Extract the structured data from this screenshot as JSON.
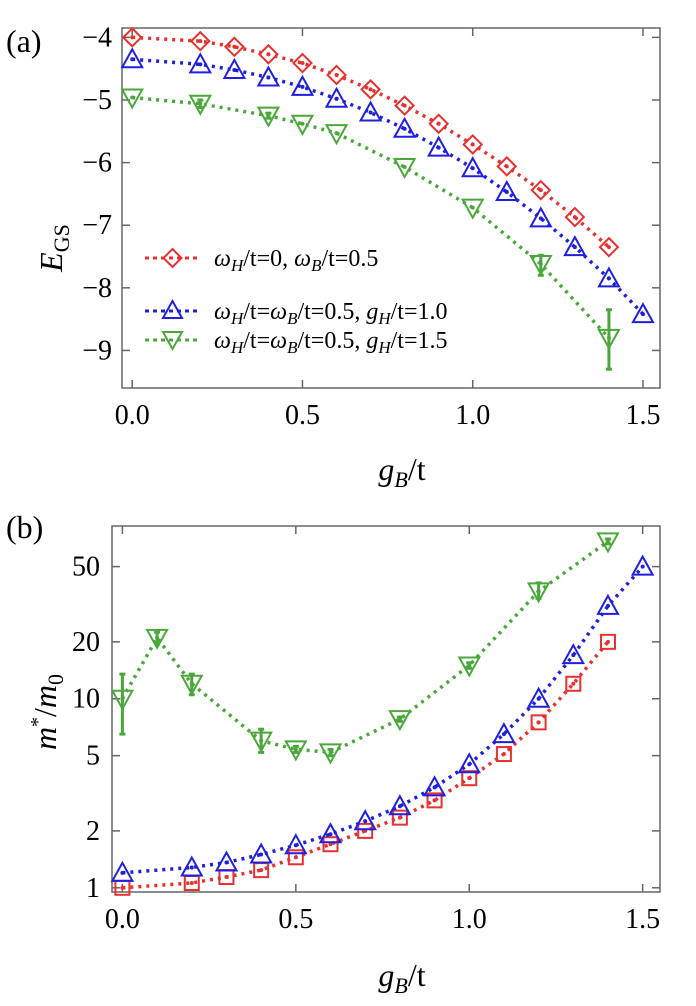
{
  "chart_data": [
    {
      "type": "line",
      "panel_label": "(a)",
      "xlabel": "g_B/t",
      "ylabel": "E_GS",
      "xlim": [
        -0.03,
        1.55
      ],
      "ylim": [
        -9.6,
        -3.85
      ],
      "xticks": [
        0.0,
        0.5,
        1.0,
        1.5
      ],
      "xtick_labels": [
        "0.0",
        "0.5",
        "1.0",
        "1.5"
      ],
      "yticks": [
        -4,
        -5,
        -6,
        -7,
        -8,
        -9
      ],
      "ytick_labels": [
        "−4",
        "−5",
        "−6",
        "−7",
        "−8",
        "−9"
      ],
      "legend_position": "bottom-left",
      "series": [
        {
          "name": "ωH/t=0, ωB/t=0.5",
          "color": "#e8312f",
          "marker": "diamond",
          "x": [
            0.0,
            0.2,
            0.3,
            0.4,
            0.5,
            0.6,
            0.7,
            0.8,
            0.9,
            1.0,
            1.1,
            1.2,
            1.3,
            1.4
          ],
          "y": [
            -4.0,
            -4.06,
            -4.15,
            -4.27,
            -4.41,
            -4.6,
            -4.83,
            -5.09,
            -5.38,
            -5.71,
            -6.06,
            -6.44,
            -6.87,
            -7.35
          ]
        },
        {
          "name": "ωH/t=ωB/t=0.5, gH/t=1.0",
          "color": "#1f1fe0",
          "marker": "triangle-up",
          "x": [
            0.0,
            0.2,
            0.3,
            0.4,
            0.5,
            0.6,
            0.7,
            0.8,
            0.9,
            1.0,
            1.1,
            1.2,
            1.3,
            1.4,
            1.5
          ],
          "y": [
            -4.35,
            -4.43,
            -4.52,
            -4.64,
            -4.79,
            -4.98,
            -5.2,
            -5.46,
            -5.76,
            -6.09,
            -6.47,
            -6.89,
            -7.35,
            -7.85,
            -8.42
          ]
        },
        {
          "name": "ωH/t=ωB/t=0.5, gH/t=1.5",
          "color": "#4aa83a",
          "marker": "triangle-down",
          "x": [
            0.0,
            0.2,
            0.4,
            0.5,
            0.6,
            0.8,
            1.0,
            1.2,
            1.4
          ],
          "y": [
            -4.96,
            -5.06,
            -5.25,
            -5.38,
            -5.53,
            -6.07,
            -6.72,
            -7.62,
            -8.8
          ],
          "error_low": [
            -4.96,
            -5.12,
            -5.29,
            -5.38,
            -5.53,
            -6.07,
            -6.72,
            -7.8,
            -9.3
          ],
          "error_high": [
            -4.96,
            -5.0,
            -5.21,
            -5.38,
            -5.53,
            -6.07,
            -6.72,
            -7.48,
            -8.35
          ]
        }
      ]
    },
    {
      "type": "line",
      "panel_label": "(b)",
      "xlabel": "g_B/t",
      "ylabel": "m*/m0",
      "yscale": "log",
      "xlim": [
        -0.03,
        1.55
      ],
      "ylim": [
        0.95,
        82
      ],
      "xticks": [
        0.0,
        0.5,
        1.0,
        1.5
      ],
      "xtick_labels": [
        "0.0",
        "0.5",
        "1.0",
        "1.5"
      ],
      "yticks": [
        1,
        2,
        5,
        10,
        20,
        50
      ],
      "ytick_labels": [
        "1",
        "2",
        "5",
        "10",
        "20",
        "50"
      ],
      "series": [
        {
          "name": "ωH/t=0, ωB/t=0.5",
          "color": "#e8312f",
          "marker": "square",
          "x": [
            0.0,
            0.2,
            0.3,
            0.4,
            0.5,
            0.6,
            0.7,
            0.8,
            0.9,
            1.0,
            1.1,
            1.2,
            1.3,
            1.4
          ],
          "y": [
            1.0,
            1.06,
            1.14,
            1.24,
            1.45,
            1.7,
            2.0,
            2.35,
            2.9,
            3.8,
            5.1,
            7.5,
            12.0,
            20.0
          ]
        },
        {
          "name": "ωH/t=ωB/t=0.5, gH/t=1.0",
          "color": "#1f1fe0",
          "marker": "triangle-up",
          "x": [
            0.0,
            0.2,
            0.3,
            0.4,
            0.5,
            0.6,
            0.7,
            0.8,
            0.9,
            1.0,
            1.1,
            1.2,
            1.3,
            1.4,
            1.5
          ],
          "y": [
            1.2,
            1.28,
            1.36,
            1.5,
            1.68,
            1.92,
            2.25,
            2.7,
            3.4,
            4.5,
            6.5,
            10.0,
            17.0,
            31.0,
            50.0
          ]
        },
        {
          "name": "ωH/t=ωB/t=0.5, gH/t=1.5",
          "color": "#4aa83a",
          "marker": "triangle-down",
          "x": [
            0.0,
            0.1,
            0.2,
            0.4,
            0.5,
            0.6,
            0.8,
            1.0,
            1.2,
            1.4
          ],
          "y": [
            10.0,
            21.0,
            12.0,
            6.0,
            5.4,
            5.2,
            7.8,
            15.0,
            37.0,
            68.0
          ],
          "error_low": [
            6.5,
            19.5,
            10.5,
            5.2,
            5.2,
            5.0,
            7.6,
            14.5,
            34.0,
            66.0
          ],
          "error_high": [
            13.5,
            22.5,
            13.5,
            6.9,
            5.6,
            5.4,
            8.0,
            15.5,
            41.0,
            70.0
          ]
        }
      ]
    }
  ],
  "legend": {
    "entries": [
      {
        "symbol": "ω",
        "sub1": "H",
        "mid1": "/t=0, ",
        "sym2": "ω",
        "sub2": "B",
        "end": "/t=0.5"
      },
      {
        "symbol": "ω",
        "sub1": "H",
        "mid1": "/t=",
        "sym2": "ω",
        "sub2": "B",
        "mid2": "/t=0.5, ",
        "sym3": "g",
        "sub3": "H",
        "end": "/t=1.0"
      },
      {
        "symbol": "ω",
        "sub1": "H",
        "mid1": "/t=",
        "sym2": "ω",
        "sub2": "B",
        "mid2": "/t=0.5, ",
        "sym3": "g",
        "sub3": "H",
        "end": "/t=1.5"
      }
    ]
  },
  "axis_text": {
    "a_ylabel_main": "E",
    "a_ylabel_sub": "GS",
    "xlabel_main": "g",
    "xlabel_sub": "B",
    "xlabel_rest": "/t",
    "b_ylabel_m": "m",
    "b_ylabel_star": "*",
    "b_ylabel_slash": "/",
    "b_ylabel_m0": "m",
    "b_ylabel_0": "0"
  }
}
